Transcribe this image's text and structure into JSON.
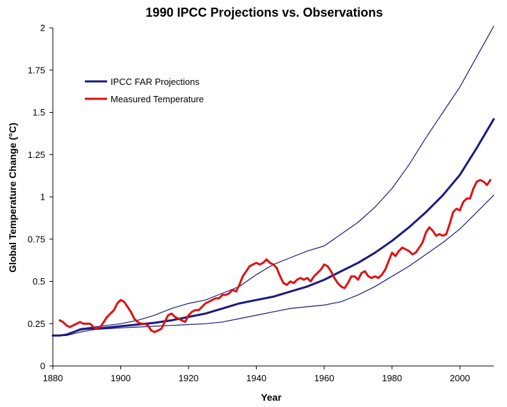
{
  "chart_data": {
    "type": "line",
    "title": "1990 IPCC Projections vs. Observations",
    "xlabel": "Year",
    "ylabel": "Global Temperature Change (°C)",
    "xlim": [
      1880,
      2010
    ],
    "ylim": [
      0,
      2
    ],
    "x_ticks": [
      1880,
      1900,
      1920,
      1940,
      1960,
      1980,
      2000
    ],
    "x_tick_labels": [
      "1880",
      "1900",
      "1920",
      "1940",
      "1960",
      "1980",
      "2000"
    ],
    "y_ticks": [
      0,
      0.25,
      0.5,
      0.75,
      1,
      1.25,
      1.5,
      1.75,
      2
    ],
    "y_tick_labels": [
      "0",
      "0.25",
      "0.5",
      "0.75",
      "1",
      "1.25",
      "1.5",
      "1.75",
      "2"
    ],
    "grid": false,
    "legend_position": "top-left",
    "legend": [
      {
        "label": "IPCC FAR Projections",
        "color": "#1a1a80"
      },
      {
        "label": "Measured Temperature",
        "color": "#dd1111"
      }
    ],
    "series": [
      {
        "name": "IPCC FAR Projections",
        "color": "#1a1a80",
        "role": "central",
        "x": [
          1880,
          1882,
          1884,
          1886,
          1888,
          1890,
          1895,
          1900,
          1905,
          1910,
          1915,
          1920,
          1925,
          1930,
          1935,
          1940,
          1945,
          1950,
          1955,
          1960,
          1965,
          1970,
          1975,
          1980,
          1985,
          1990,
          1995,
          2000,
          2005,
          2010
        ],
        "values": [
          0.18,
          0.18,
          0.185,
          0.2,
          0.215,
          0.22,
          0.225,
          0.235,
          0.245,
          0.255,
          0.27,
          0.29,
          0.31,
          0.34,
          0.37,
          0.39,
          0.41,
          0.44,
          0.47,
          0.51,
          0.56,
          0.61,
          0.67,
          0.74,
          0.82,
          0.91,
          1.01,
          1.13,
          1.29,
          1.46
        ]
      },
      {
        "name": "IPCC FAR upper bound",
        "color": "#1a1a80",
        "role": "bound",
        "x": [
          1880,
          1884,
          1888,
          1892,
          1896,
          1900,
          1905,
          1910,
          1915,
          1920,
          1925,
          1930,
          1935,
          1940,
          1945,
          1950,
          1955,
          1960,
          1965,
          1970,
          1975,
          1980,
          1985,
          1990,
          1995,
          2000,
          2005,
          2010
        ],
        "values": [
          0.18,
          0.18,
          0.22,
          0.23,
          0.24,
          0.25,
          0.27,
          0.3,
          0.34,
          0.37,
          0.39,
          0.43,
          0.47,
          0.54,
          0.6,
          0.64,
          0.68,
          0.71,
          0.78,
          0.85,
          0.94,
          1.05,
          1.19,
          1.35,
          1.5,
          1.65,
          1.83,
          2.01
        ]
      },
      {
        "name": "IPCC FAR lower bound",
        "color": "#1a1a80",
        "role": "bound",
        "x": [
          1880,
          1884,
          1888,
          1892,
          1896,
          1900,
          1905,
          1910,
          1915,
          1920,
          1925,
          1930,
          1935,
          1940,
          1945,
          1950,
          1955,
          1960,
          1965,
          1970,
          1975,
          1980,
          1985,
          1990,
          1995,
          2000,
          2005,
          2010
        ],
        "values": [
          0.18,
          0.18,
          0.2,
          0.215,
          0.22,
          0.225,
          0.23,
          0.235,
          0.24,
          0.245,
          0.25,
          0.26,
          0.28,
          0.3,
          0.32,
          0.34,
          0.35,
          0.36,
          0.38,
          0.42,
          0.47,
          0.53,
          0.59,
          0.66,
          0.73,
          0.81,
          0.91,
          1.01
        ]
      },
      {
        "name": "Measured Temperature",
        "color": "#dd1111",
        "role": "observed",
        "x": [
          1882,
          1883,
          1884,
          1885,
          1886,
          1887,
          1888,
          1889,
          1890,
          1891,
          1892,
          1893,
          1894,
          1895,
          1896,
          1897,
          1898,
          1899,
          1900,
          1901,
          1902,
          1903,
          1904,
          1905,
          1906,
          1907,
          1908,
          1909,
          1910,
          1911,
          1912,
          1913,
          1914,
          1915,
          1916,
          1917,
          1918,
          1919,
          1920,
          1921,
          1922,
          1923,
          1924,
          1925,
          1926,
          1927,
          1928,
          1929,
          1930,
          1931,
          1932,
          1933,
          1934,
          1935,
          1936,
          1937,
          1938,
          1939,
          1940,
          1941,
          1942,
          1943,
          1944,
          1945,
          1946,
          1947,
          1948,
          1949,
          1950,
          1951,
          1952,
          1953,
          1954,
          1955,
          1956,
          1957,
          1958,
          1959,
          1960,
          1961,
          1962,
          1963,
          1964,
          1965,
          1966,
          1967,
          1968,
          1969,
          1970,
          1971,
          1972,
          1973,
          1974,
          1975,
          1976,
          1977,
          1978,
          1979,
          1980,
          1981,
          1982,
          1983,
          1984,
          1985,
          1986,
          1987,
          1988,
          1989,
          1990,
          1991,
          1992,
          1993,
          1994,
          1995,
          1996,
          1997,
          1998,
          1999,
          2000,
          2001,
          2002,
          2003,
          2004,
          2005,
          2006,
          2007,
          2008,
          2009
        ],
        "values": [
          0.27,
          0.26,
          0.24,
          0.23,
          0.24,
          0.25,
          0.26,
          0.25,
          0.25,
          0.25,
          0.23,
          0.22,
          0.23,
          0.26,
          0.29,
          0.31,
          0.33,
          0.37,
          0.39,
          0.38,
          0.35,
          0.32,
          0.28,
          0.26,
          0.25,
          0.25,
          0.24,
          0.21,
          0.2,
          0.21,
          0.22,
          0.26,
          0.3,
          0.31,
          0.29,
          0.28,
          0.27,
          0.26,
          0.3,
          0.32,
          0.33,
          0.33,
          0.35,
          0.37,
          0.38,
          0.39,
          0.4,
          0.4,
          0.42,
          0.42,
          0.43,
          0.45,
          0.44,
          0.48,
          0.53,
          0.56,
          0.59,
          0.6,
          0.61,
          0.6,
          0.61,
          0.63,
          0.61,
          0.6,
          0.58,
          0.53,
          0.49,
          0.48,
          0.5,
          0.49,
          0.51,
          0.52,
          0.51,
          0.52,
          0.5,
          0.53,
          0.55,
          0.57,
          0.6,
          0.59,
          0.56,
          0.52,
          0.49,
          0.47,
          0.46,
          0.49,
          0.53,
          0.53,
          0.51,
          0.55,
          0.56,
          0.53,
          0.52,
          0.53,
          0.52,
          0.54,
          0.57,
          0.62,
          0.67,
          0.65,
          0.68,
          0.7,
          0.69,
          0.68,
          0.66,
          0.67,
          0.7,
          0.73,
          0.79,
          0.82,
          0.8,
          0.77,
          0.78,
          0.77,
          0.78,
          0.84,
          0.91,
          0.93,
          0.92,
          0.97,
          0.99,
          0.99,
          1.05,
          1.09,
          1.1,
          1.09,
          1.07,
          1.1
        ]
      }
    ]
  }
}
